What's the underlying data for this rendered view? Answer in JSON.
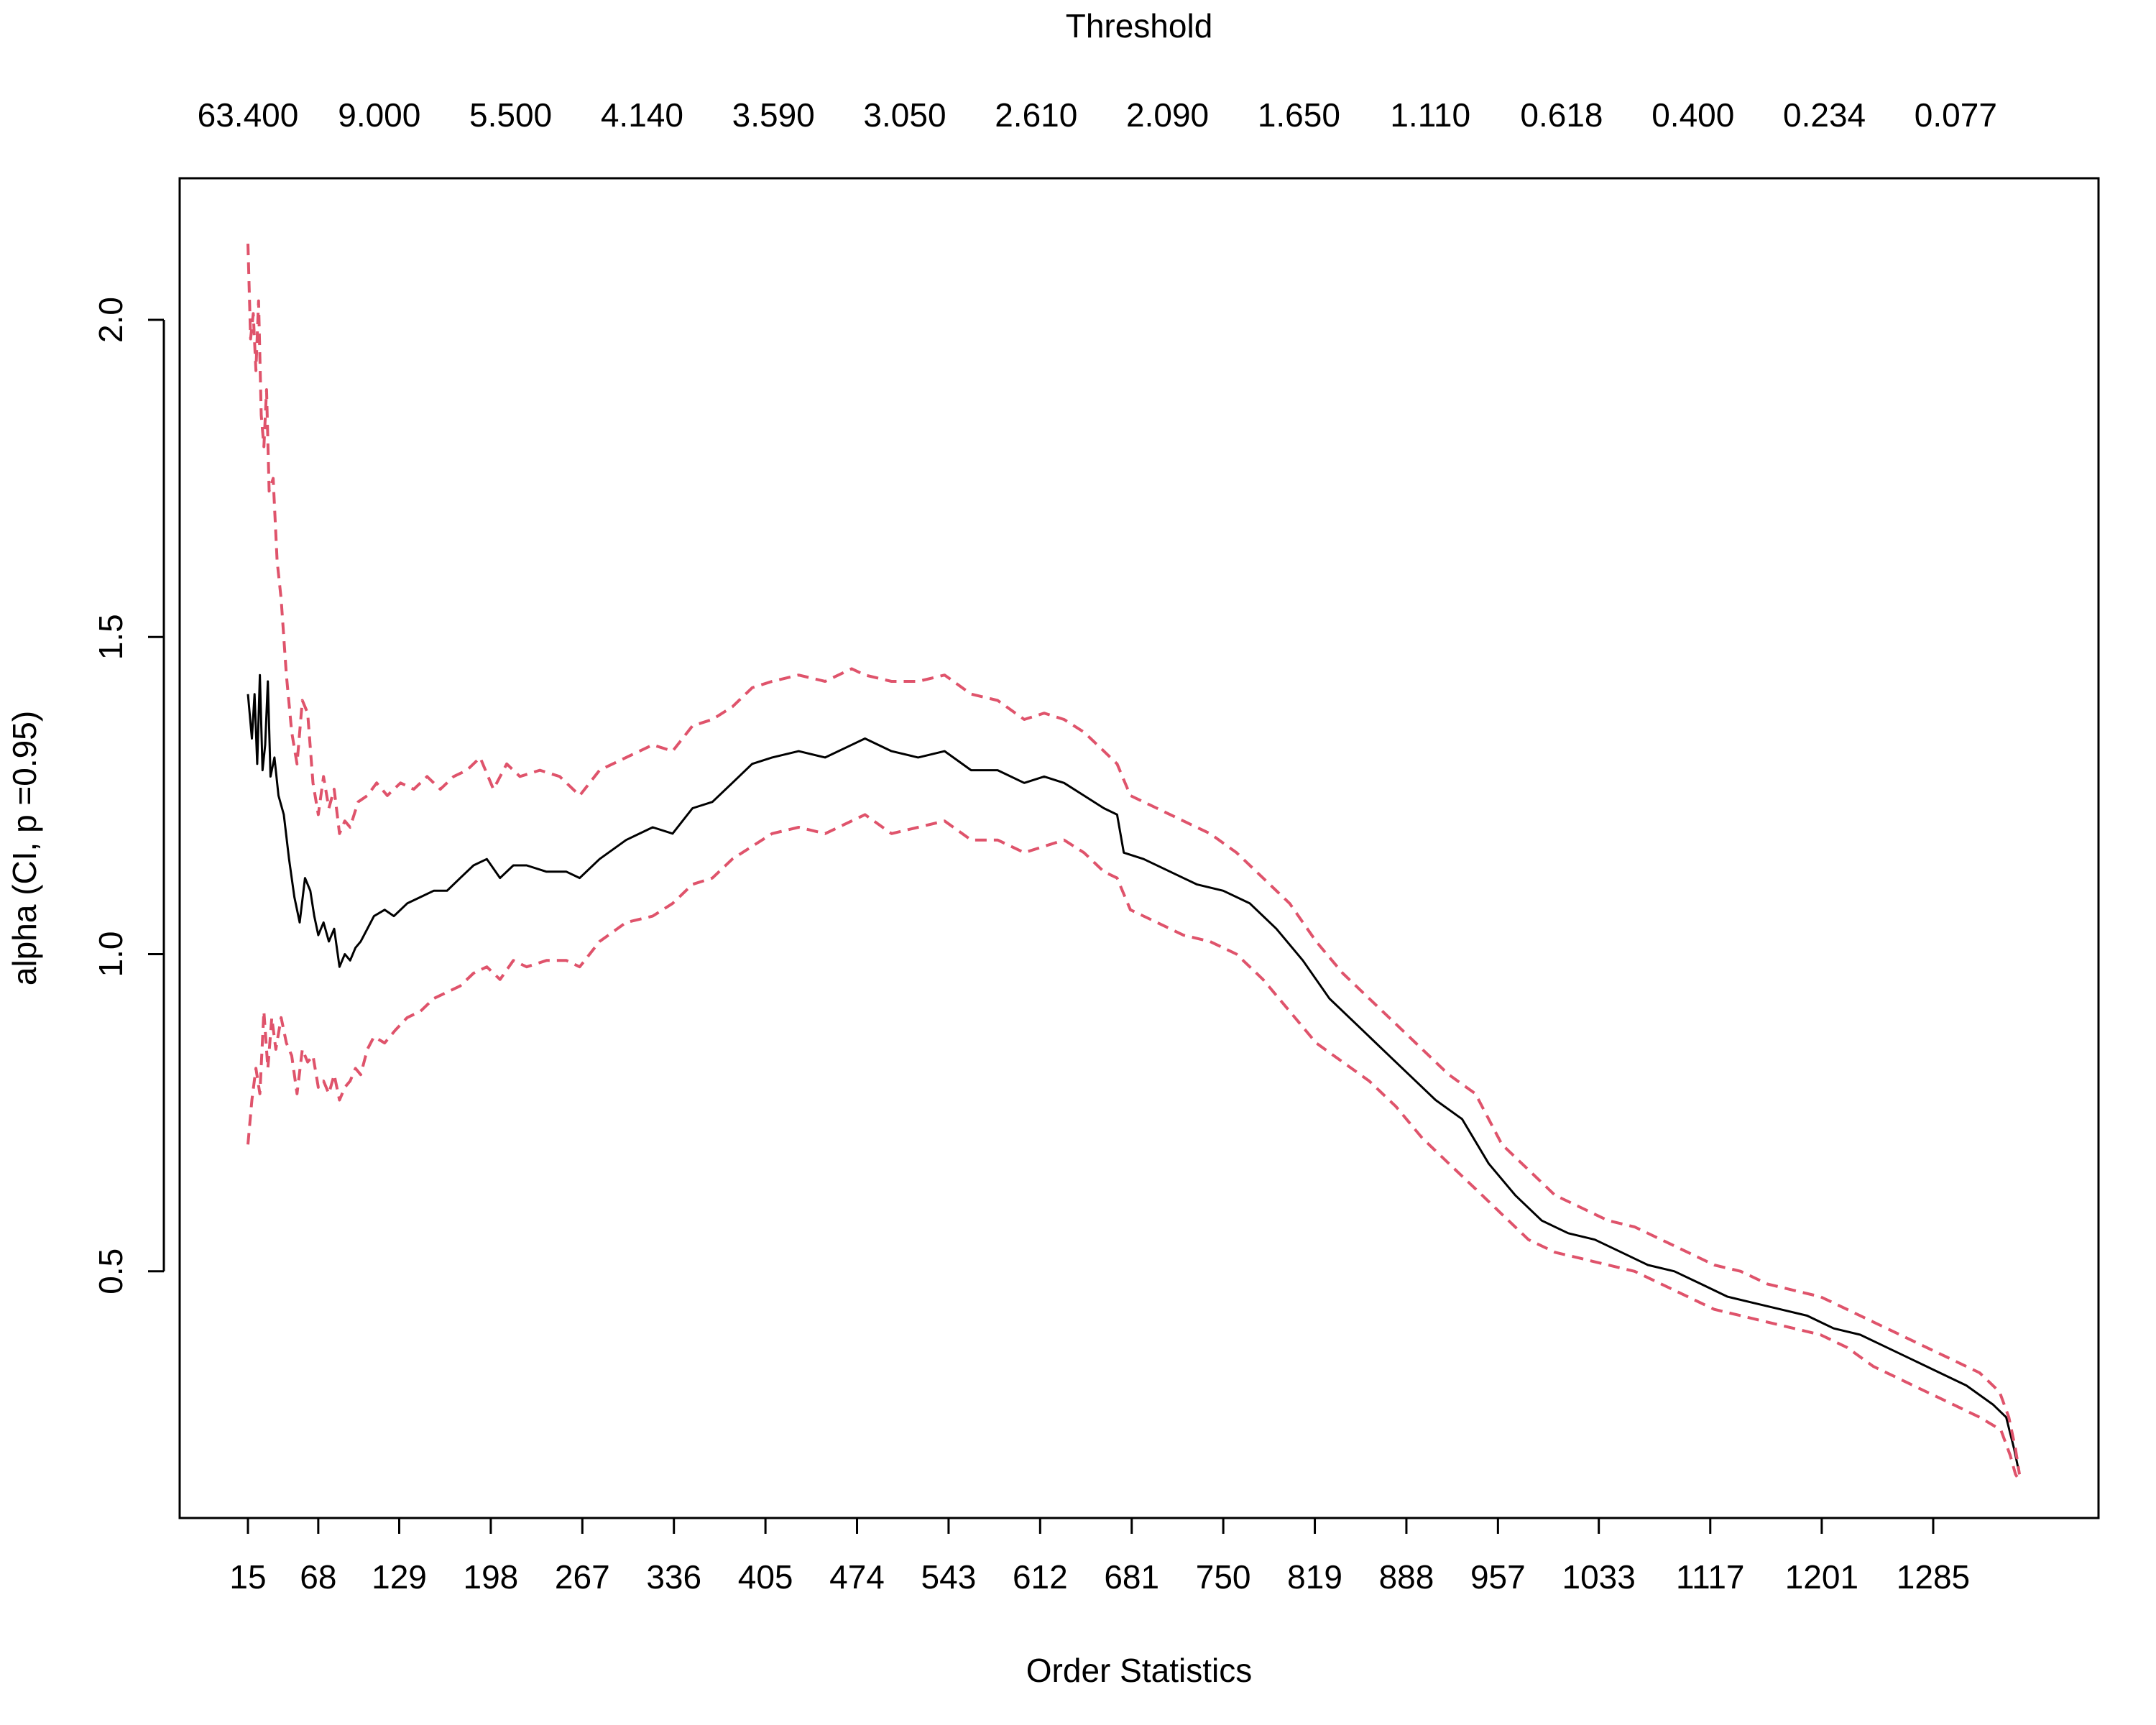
{
  "chart_data": {
    "type": "line",
    "top_axis_title": "Threshold",
    "xlabel": "Order Statistics",
    "ylabel": "alpha (CI, p =0.95)",
    "xlim": [
      15,
      1350
    ],
    "ylim": [
      0.17,
      2.17
    ],
    "bottom_ticks": [
      {
        "value": 15,
        "label": "15"
      },
      {
        "value": 68,
        "label": "68"
      },
      {
        "value": 129,
        "label": "129"
      },
      {
        "value": 198,
        "label": "198"
      },
      {
        "value": 267,
        "label": "267"
      },
      {
        "value": 336,
        "label": "336"
      },
      {
        "value": 405,
        "label": "405"
      },
      {
        "value": 474,
        "label": "474"
      },
      {
        "value": 543,
        "label": "543"
      },
      {
        "value": 612,
        "label": "612"
      },
      {
        "value": 681,
        "label": "681"
      },
      {
        "value": 750,
        "label": "750"
      },
      {
        "value": 819,
        "label": "819"
      },
      {
        "value": 888,
        "label": "888"
      },
      {
        "value": 957,
        "label": "957"
      },
      {
        "value": 1033,
        "label": "1033"
      },
      {
        "value": 1117,
        "label": "1117"
      },
      {
        "value": 1201,
        "label": "1201"
      },
      {
        "value": 1285,
        "label": "1285"
      }
    ],
    "top_ticks": [
      {
        "value": 15,
        "label": "63.400"
      },
      {
        "value": 114,
        "label": "9.000"
      },
      {
        "value": 213,
        "label": "5.500"
      },
      {
        "value": 312,
        "label": "4.140"
      },
      {
        "value": 411,
        "label": "3.590"
      },
      {
        "value": 510,
        "label": "3.050"
      },
      {
        "value": 609,
        "label": "2.610"
      },
      {
        "value": 708,
        "label": "2.090"
      },
      {
        "value": 807,
        "label": "1.650"
      },
      {
        "value": 906,
        "label": "1.110"
      },
      {
        "value": 1005,
        "label": "0.618"
      },
      {
        "value": 1104,
        "label": "0.400"
      },
      {
        "value": 1203,
        "label": "0.234"
      },
      {
        "value": 1302,
        "label": "0.077"
      }
    ],
    "y_ticks": [
      {
        "value": 0.5,
        "label": "0.5"
      },
      {
        "value": 1.0,
        "label": "1.0"
      },
      {
        "value": 1.5,
        "label": "1.5"
      },
      {
        "value": 2.0,
        "label": "2.0"
      }
    ],
    "series": [
      {
        "role": "estimate",
        "color": "#000000",
        "dash": "solid",
        "x": [
          15,
          18,
          20,
          22,
          24,
          26,
          28,
          30,
          32,
          35,
          38,
          42,
          46,
          50,
          54,
          58,
          62,
          65,
          68,
          72,
          76,
          80,
          84,
          88,
          92,
          96,
          100,
          105,
          110,
          118,
          125,
          135,
          145,
          155,
          165,
          175,
          185,
          195,
          205,
          215,
          225,
          240,
          255,
          265,
          280,
          300,
          320,
          335,
          350,
          365,
          380,
          395,
          410,
          430,
          450,
          470,
          480,
          500,
          520,
          540,
          560,
          580,
          600,
          615,
          630,
          645,
          660,
          670,
          675,
          690,
          710,
          730,
          750,
          770,
          790,
          810,
          830,
          850,
          870,
          890,
          910,
          930,
          950,
          970,
          990,
          1010,
          1030,
          1050,
          1070,
          1090,
          1110,
          1130,
          1150,
          1170,
          1190,
          1210,
          1230,
          1250,
          1270,
          1290,
          1310,
          1330,
          1340,
          1346,
          1350
        ],
        "y": [
          1.41,
          1.34,
          1.41,
          1.3,
          1.44,
          1.29,
          1.33,
          1.43,
          1.28,
          1.31,
          1.25,
          1.22,
          1.15,
          1.09,
          1.05,
          1.12,
          1.1,
          1.06,
          1.03,
          1.05,
          1.02,
          1.04,
          0.98,
          1.0,
          0.99,
          1.01,
          1.02,
          1.04,
          1.06,
          1.07,
          1.06,
          1.08,
          1.09,
          1.1,
          1.1,
          1.12,
          1.14,
          1.15,
          1.12,
          1.14,
          1.14,
          1.13,
          1.13,
          1.12,
          1.15,
          1.18,
          1.2,
          1.19,
          1.23,
          1.24,
          1.27,
          1.3,
          1.31,
          1.32,
          1.31,
          1.33,
          1.34,
          1.32,
          1.31,
          1.32,
          1.29,
          1.29,
          1.27,
          1.28,
          1.27,
          1.25,
          1.23,
          1.22,
          1.16,
          1.15,
          1.13,
          1.11,
          1.1,
          1.08,
          1.04,
          0.99,
          0.93,
          0.89,
          0.85,
          0.81,
          0.77,
          0.74,
          0.67,
          0.62,
          0.58,
          0.56,
          0.55,
          0.53,
          0.51,
          0.5,
          0.48,
          0.46,
          0.45,
          0.44,
          0.43,
          0.41,
          0.4,
          0.38,
          0.36,
          0.34,
          0.32,
          0.29,
          0.27,
          0.22,
          0.18
        ]
      },
      {
        "role": "upper-ci",
        "color": "#DF536B",
        "dash": "dashed",
        "x": [
          15,
          17,
          19,
          21,
          23,
          25,
          27,
          29,
          31,
          34,
          37,
          40,
          44,
          48,
          52,
          56,
          60,
          64,
          68,
          72,
          76,
          80,
          84,
          88,
          92,
          98,
          105,
          112,
          120,
          130,
          140,
          150,
          160,
          170,
          180,
          190,
          200,
          210,
          220,
          235,
          250,
          265,
          280,
          300,
          320,
          335,
          350,
          365,
          380,
          395,
          410,
          430,
          450,
          470,
          480,
          500,
          520,
          540,
          560,
          580,
          600,
          615,
          630,
          645,
          660,
          670,
          680,
          700,
          720,
          740,
          760,
          780,
          800,
          820,
          840,
          860,
          880,
          900,
          920,
          940,
          960,
          980,
          1000,
          1020,
          1040,
          1060,
          1080,
          1100,
          1120,
          1140,
          1160,
          1180,
          1200,
          1220,
          1240,
          1260,
          1280,
          1300,
          1320,
          1335,
          1342,
          1347,
          1350
        ],
        "y": [
          2.12,
          1.97,
          2.01,
          1.92,
          2.03,
          1.85,
          1.8,
          1.89,
          1.73,
          1.75,
          1.62,
          1.56,
          1.44,
          1.35,
          1.3,
          1.4,
          1.38,
          1.27,
          1.22,
          1.28,
          1.23,
          1.26,
          1.19,
          1.21,
          1.2,
          1.24,
          1.25,
          1.27,
          1.25,
          1.27,
          1.26,
          1.28,
          1.26,
          1.28,
          1.29,
          1.31,
          1.26,
          1.3,
          1.28,
          1.29,
          1.28,
          1.25,
          1.29,
          1.31,
          1.33,
          1.32,
          1.36,
          1.37,
          1.39,
          1.42,
          1.43,
          1.44,
          1.43,
          1.45,
          1.44,
          1.43,
          1.43,
          1.44,
          1.41,
          1.4,
          1.37,
          1.38,
          1.37,
          1.35,
          1.32,
          1.3,
          1.25,
          1.23,
          1.21,
          1.19,
          1.16,
          1.12,
          1.08,
          1.02,
          0.97,
          0.93,
          0.89,
          0.85,
          0.81,
          0.78,
          0.7,
          0.66,
          0.62,
          0.6,
          0.58,
          0.57,
          0.55,
          0.53,
          0.51,
          0.5,
          0.48,
          0.47,
          0.46,
          0.44,
          0.42,
          0.4,
          0.38,
          0.36,
          0.34,
          0.31,
          0.27,
          0.22,
          0.18
        ]
      },
      {
        "role": "lower-ci",
        "color": "#DF536B",
        "dash": "dashed",
        "x": [
          15,
          18,
          21,
          24,
          27,
          30,
          33,
          36,
          40,
          44,
          48,
          52,
          56,
          60,
          64,
          68,
          72,
          76,
          80,
          84,
          88,
          92,
          96,
          100,
          105,
          110,
          118,
          126,
          135,
          145,
          155,
          165,
          175,
          185,
          195,
          205,
          215,
          225,
          240,
          255,
          265,
          280,
          300,
          320,
          335,
          350,
          365,
          380,
          395,
          410,
          430,
          450,
          470,
          480,
          500,
          520,
          540,
          560,
          580,
          600,
          615,
          630,
          645,
          660,
          670,
          680,
          700,
          720,
          740,
          760,
          780,
          800,
          820,
          840,
          860,
          880,
          900,
          920,
          940,
          960,
          980,
          1000,
          1020,
          1040,
          1060,
          1080,
          1100,
          1120,
          1140,
          1160,
          1180,
          1200,
          1220,
          1240,
          1260,
          1280,
          1300,
          1320,
          1336,
          1343,
          1347,
          1350
        ],
        "y": [
          0.7,
          0.77,
          0.82,
          0.78,
          0.91,
          0.82,
          0.9,
          0.85,
          0.9,
          0.86,
          0.84,
          0.78,
          0.85,
          0.83,
          0.84,
          0.79,
          0.8,
          0.78,
          0.81,
          0.77,
          0.79,
          0.8,
          0.82,
          0.81,
          0.85,
          0.87,
          0.86,
          0.88,
          0.9,
          0.91,
          0.93,
          0.94,
          0.95,
          0.97,
          0.98,
          0.96,
          0.99,
          0.98,
          0.99,
          0.99,
          0.98,
          1.02,
          1.05,
          1.06,
          1.08,
          1.11,
          1.12,
          1.15,
          1.17,
          1.19,
          1.2,
          1.19,
          1.21,
          1.22,
          1.19,
          1.2,
          1.21,
          1.18,
          1.18,
          1.16,
          1.17,
          1.18,
          1.16,
          1.13,
          1.12,
          1.07,
          1.05,
          1.03,
          1.02,
          1.0,
          0.96,
          0.91,
          0.86,
          0.83,
          0.8,
          0.76,
          0.71,
          0.67,
          0.63,
          0.59,
          0.55,
          0.53,
          0.52,
          0.51,
          0.5,
          0.48,
          0.46,
          0.44,
          0.43,
          0.42,
          0.41,
          0.4,
          0.38,
          0.35,
          0.33,
          0.31,
          0.29,
          0.27,
          0.25,
          0.21,
          0.18,
          0.17
        ]
      }
    ]
  }
}
